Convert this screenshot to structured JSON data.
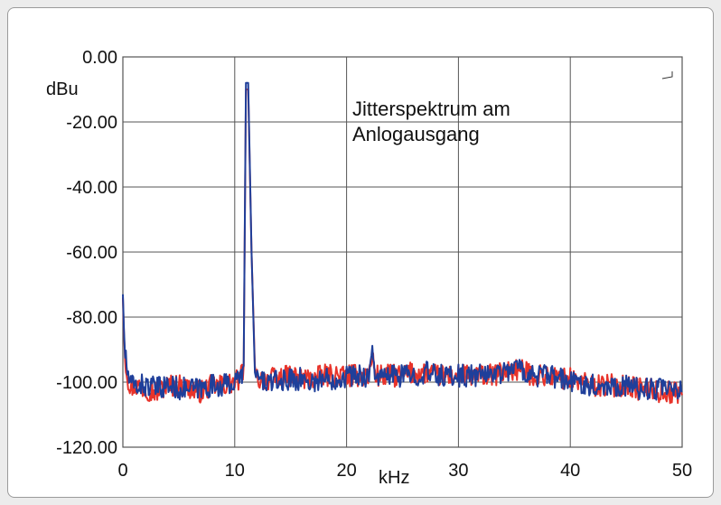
{
  "chart_data": {
    "type": "line",
    "title": "",
    "annotation": [
      "Jitterspektrum am",
      "Anlogausgang"
    ],
    "xlabel": "kHz",
    "ylabel": "dBu",
    "xlim": [
      0,
      50
    ],
    "ylim": [
      -120,
      0
    ],
    "x_ticks": [
      0,
      10,
      20,
      30,
      40,
      50
    ],
    "x_tick_labels": [
      "0",
      "10",
      "20",
      "30",
      "40",
      "50"
    ],
    "y_ticks": [
      0,
      -20,
      -40,
      -60,
      -80,
      -100,
      -120
    ],
    "y_tick_labels": [
      "0.00",
      "-20.00",
      "-40.00",
      "-60.00",
      "-80.00",
      "-100.00",
      "-120.00"
    ],
    "grid": true,
    "series": [
      {
        "color": "#e8332a",
        "x": [
          0,
          0.1,
          0.2,
          0.4,
          0.7,
          1,
          2,
          3,
          4,
          5,
          6,
          7,
          8,
          9,
          10,
          10.5,
          10.8,
          11,
          11.2,
          11.5,
          11.8,
          12,
          13,
          14,
          15,
          16,
          17,
          18,
          19,
          20,
          21,
          22,
          22.3,
          22.6,
          23,
          24,
          25,
          26,
          27,
          28,
          29,
          30,
          31,
          32,
          33,
          34,
          35,
          36,
          37,
          38,
          39,
          40,
          41,
          42,
          43,
          44,
          45,
          46,
          47,
          48,
          49,
          50
        ],
        "y": [
          -74,
          -85,
          -92,
          -98,
          -102,
          -101,
          -102,
          -103,
          -101,
          -101,
          -102,
          -103,
          -101,
          -101,
          -100,
          -99,
          -95,
          -10,
          -10,
          -60,
          -98,
          -99,
          -99,
          -99,
          -98,
          -99,
          -99,
          -98,
          -98,
          -98,
          -98,
          -98,
          -92,
          -98,
          -98,
          -98,
          -98,
          -97,
          -97,
          -98,
          -98,
          -98,
          -98,
          -98,
          -98,
          -97,
          -96,
          -97,
          -98,
          -98,
          -99,
          -99,
          -100,
          -101,
          -101,
          -101,
          -101,
          -102,
          -102,
          -103,
          -103,
          -104
        ]
      },
      {
        "color": "#1f3f9a",
        "x": [
          0,
          0.1,
          0.2,
          0.4,
          0.7,
          1,
          2,
          3,
          4,
          5,
          6,
          7,
          8,
          9,
          10,
          10.5,
          10.8,
          11,
          11.2,
          11.5,
          11.8,
          12,
          13,
          14,
          15,
          16,
          17,
          18,
          19,
          20,
          21,
          22,
          22.3,
          22.6,
          23,
          24,
          25,
          26,
          27,
          28,
          29,
          30,
          31,
          32,
          33,
          34,
          35,
          36,
          37,
          38,
          39,
          40,
          41,
          42,
          43,
          44,
          45,
          46,
          47,
          48,
          49,
          50
        ],
        "y": [
          -73,
          -84,
          -91,
          -97,
          -101,
          -101,
          -101,
          -102,
          -101,
          -102,
          -102,
          -102,
          -101,
          -101,
          -100,
          -99,
          -95,
          -8,
          -8,
          -60,
          -98,
          -99,
          -100,
          -100,
          -99,
          -99,
          -100,
          -99,
          -99,
          -98,
          -98,
          -98,
          -91,
          -98,
          -99,
          -98,
          -98,
          -98,
          -97,
          -98,
          -98,
          -98,
          -98,
          -98,
          -97,
          -97,
          -95,
          -97,
          -98,
          -98,
          -99,
          -100,
          -100,
          -101,
          -101,
          -101,
          -101,
          -102,
          -102,
          -102,
          -103,
          -103
        ]
      }
    ]
  }
}
